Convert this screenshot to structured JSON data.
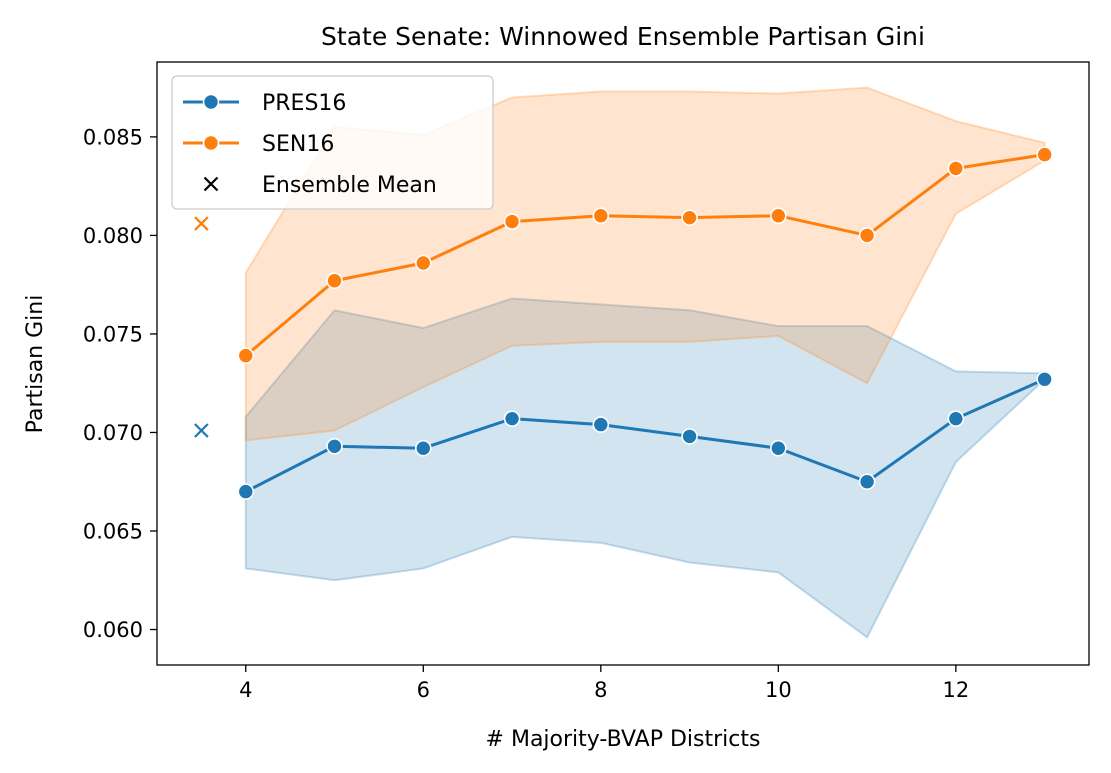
{
  "chart_data": {
    "type": "line",
    "title": "State Senate: Winnowed Ensemble Partisan Gini",
    "xlabel": "# Majority-BVAP Districts",
    "ylabel": "Partisan Gini",
    "xlim": [
      3.0,
      13.5
    ],
    "ylim": [
      0.0582,
      0.0888
    ],
    "xticks": [
      4,
      6,
      8,
      10,
      12
    ],
    "xtick_labels": [
      "4",
      "6",
      "8",
      "10",
      "12"
    ],
    "yticks": [
      0.06,
      0.065,
      0.07,
      0.075,
      0.08,
      0.085
    ],
    "ytick_labels": [
      "0.060",
      "0.065",
      "0.070",
      "0.075",
      "0.080",
      "0.085"
    ],
    "grid": false,
    "legend_position": "upper-left",
    "x": [
      4,
      5,
      6,
      7,
      8,
      9,
      10,
      11,
      12,
      13
    ],
    "series": [
      {
        "name": "PRES16",
        "color": "#1f77b4",
        "band_color": "#1f77b4",
        "values": [
          0.067,
          0.0693,
          0.0692,
          0.0707,
          0.0704,
          0.0698,
          0.0692,
          0.0675,
          0.0707,
          0.0727
        ],
        "band_low": [
          0.0631,
          0.0625,
          0.0631,
          0.0647,
          0.0644,
          0.0634,
          0.0629,
          0.0596,
          0.0685,
          0.0727
        ],
        "band_high": [
          0.0708,
          0.0762,
          0.0753,
          0.0768,
          0.0765,
          0.0762,
          0.0754,
          0.0754,
          0.0731,
          0.073
        ],
        "ensemble_mean": {
          "x": 3.5,
          "y": 0.0701
        }
      },
      {
        "name": "SEN16",
        "color": "#ff7f0e",
        "band_color": "#ff7f0e",
        "values": [
          0.0739,
          0.0777,
          0.0786,
          0.0807,
          0.081,
          0.0809,
          0.081,
          0.08,
          0.0834,
          0.0841
        ],
        "band_low": [
          0.0696,
          0.0701,
          0.0723,
          0.0744,
          0.0746,
          0.0746,
          0.0749,
          0.0725,
          0.0811,
          0.0838
        ],
        "band_high": [
          0.0781,
          0.0855,
          0.0851,
          0.087,
          0.0873,
          0.0873,
          0.0872,
          0.0875,
          0.0858,
          0.0847
        ],
        "ensemble_mean": {
          "x": 3.5,
          "y": 0.0806
        }
      }
    ],
    "legend": [
      {
        "label": "PRES16",
        "marker": "line-dot",
        "color": "#1f77b4"
      },
      {
        "label": "SEN16",
        "marker": "line-dot",
        "color": "#ff7f0e"
      },
      {
        "label": "Ensemble Mean",
        "marker": "x",
        "color": "#000000"
      }
    ]
  }
}
